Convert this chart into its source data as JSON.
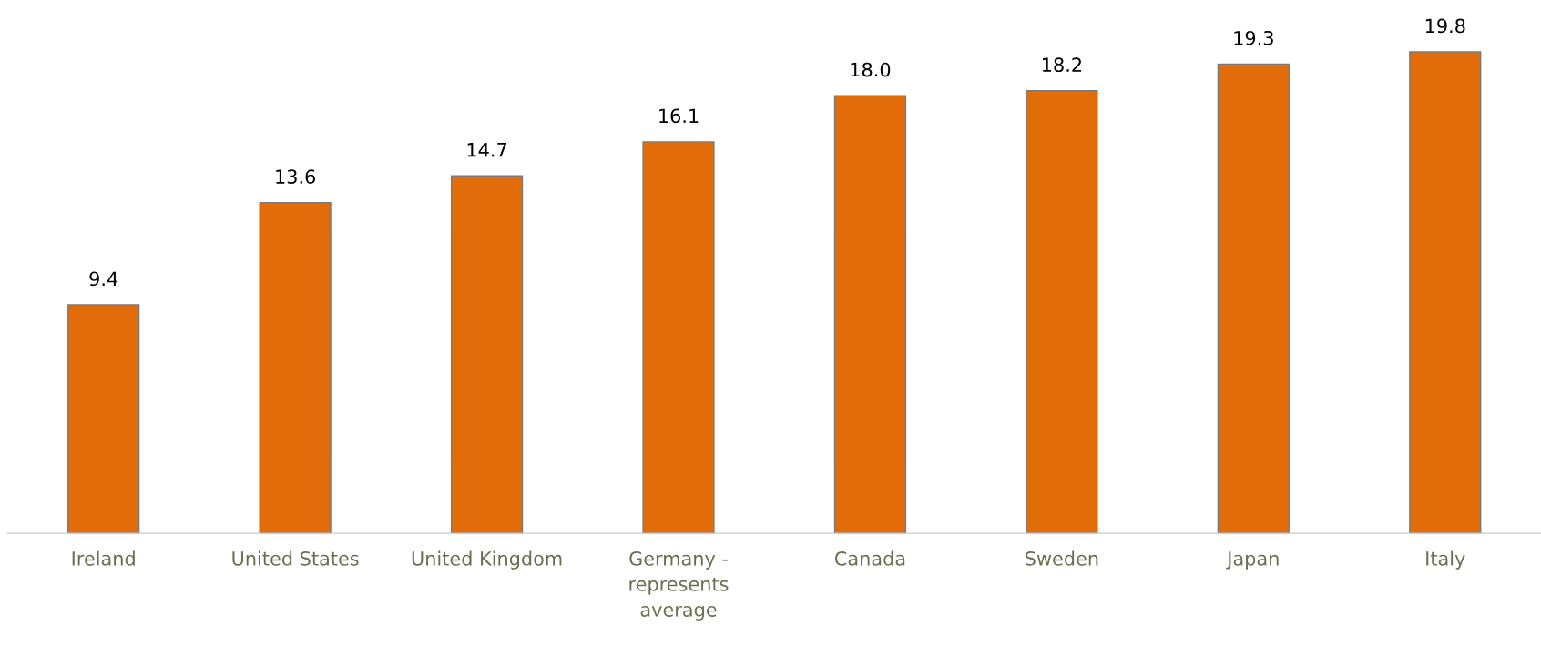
{
  "chart_data": {
    "type": "bar",
    "categories": [
      "Ireland",
      "United States",
      "United Kingdom",
      "Germany -\nrepresents\naverage",
      "Canada",
      "Sweden",
      "Japan",
      "Italy"
    ],
    "values": [
      9.4,
      13.6,
      14.7,
      16.1,
      18.0,
      18.2,
      19.3,
      19.8
    ],
    "value_labels": [
      "9.4",
      "13.6",
      "14.7",
      "16.1",
      "18.0",
      "18.2",
      "19.3",
      "19.8"
    ],
    "color": "#e36c0a",
    "grid": false,
    "legend": false
  }
}
